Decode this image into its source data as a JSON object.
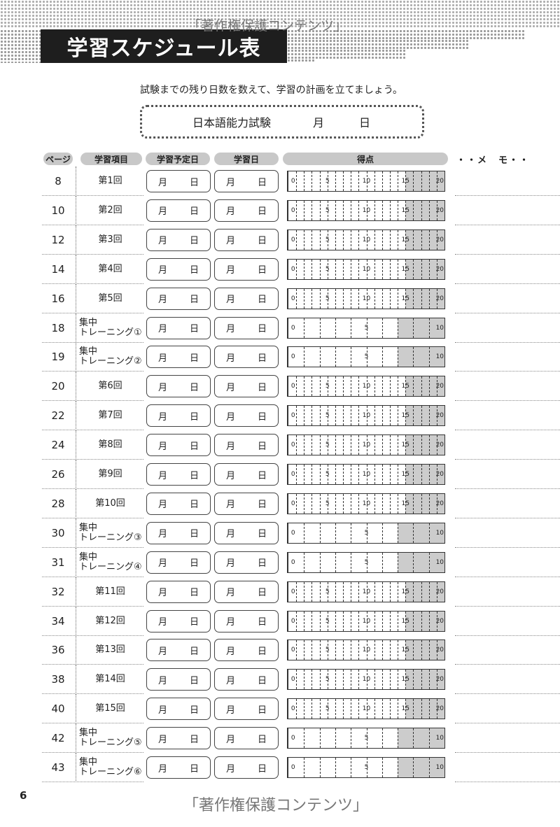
{
  "title": "学習スケジュール表",
  "watermark": "「著作権保護コンテンツ」",
  "intro": "試験までの残り日数を数えて、学習の計画を立てましょう。",
  "exam": {
    "name": "日本語能力試験",
    "month": "月",
    "day": "日"
  },
  "headers": {
    "page": "ページ",
    "item": "学習項目",
    "planned": "学習予定日",
    "studied": "学習日",
    "score": "得点",
    "memo": "・・メ　モ・・"
  },
  "date_labels": {
    "month": "月",
    "day": "日"
  },
  "scales": {
    "20": {
      "max": 20,
      "labels": [
        "0",
        "5",
        "10",
        "15",
        "20"
      ],
      "shade_from": 15
    },
    "10": {
      "max": 10,
      "labels": [
        "0",
        "5",
        "10"
      ],
      "shade_from": 7
    }
  },
  "rows": [
    {
      "page": "8",
      "item": "第1回",
      "scale": "20"
    },
    {
      "page": "10",
      "item": "第2回",
      "scale": "20"
    },
    {
      "page": "12",
      "item": "第3回",
      "scale": "20"
    },
    {
      "page": "14",
      "item": "第4回",
      "scale": "20"
    },
    {
      "page": "16",
      "item": "第5回",
      "scale": "20"
    },
    {
      "page": "18",
      "item": "集中",
      "item2": "トレーニング①",
      "scale": "10"
    },
    {
      "page": "19",
      "item": "集中",
      "item2": "トレーニング②",
      "scale": "10"
    },
    {
      "page": "20",
      "item": "第6回",
      "scale": "20"
    },
    {
      "page": "22",
      "item": "第7回",
      "scale": "20"
    },
    {
      "page": "24",
      "item": "第8回",
      "scale": "20"
    },
    {
      "page": "26",
      "item": "第9回",
      "scale": "20"
    },
    {
      "page": "28",
      "item": "第10回",
      "scale": "20"
    },
    {
      "page": "30",
      "item": "集中",
      "item2": "トレーニング③",
      "scale": "10"
    },
    {
      "page": "31",
      "item": "集中",
      "item2": "トレーニング④",
      "scale": "10"
    },
    {
      "page": "32",
      "item": "第11回",
      "scale": "20"
    },
    {
      "page": "34",
      "item": "第12回",
      "scale": "20"
    },
    {
      "page": "36",
      "item": "第13回",
      "scale": "20"
    },
    {
      "page": "38",
      "item": "第14回",
      "scale": "20"
    },
    {
      "page": "40",
      "item": "第15回",
      "scale": "20"
    },
    {
      "page": "42",
      "item": "集中",
      "item2": "トレーニング⑤",
      "scale": "10"
    },
    {
      "page": "43",
      "item": "集中",
      "item2": "トレーニング⑥",
      "scale": "10"
    }
  ],
  "page_number": "6"
}
